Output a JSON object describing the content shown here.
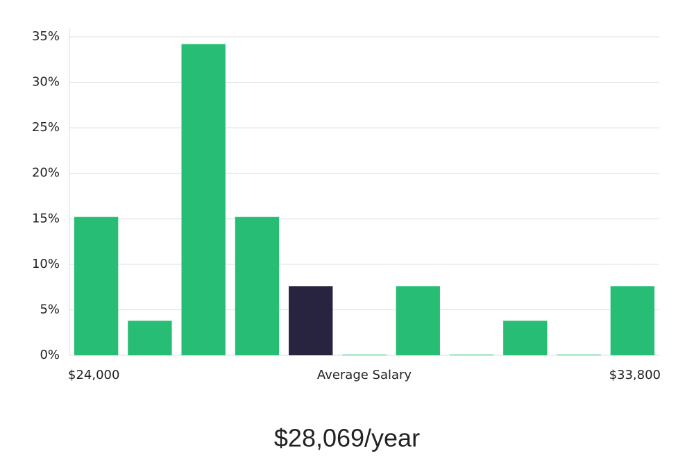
{
  "chart_data": {
    "type": "bar",
    "values": [
      15.2,
      3.8,
      34.2,
      15.2,
      7.6,
      0,
      7.6,
      0,
      3.8,
      0,
      7.6
    ],
    "color": "#27bd74",
    "highlight": 4,
    "highlight_color": "#28243f",
    "ylim": [
      0,
      35
    ],
    "yticks": [
      {
        "value": 0,
        "label": "0%"
      },
      {
        "value": 5,
        "label": "5%"
      },
      {
        "value": 10,
        "label": "10%"
      },
      {
        "value": 15,
        "label": "15%"
      },
      {
        "value": 20,
        "label": "20%"
      },
      {
        "value": 25,
        "label": "25%"
      },
      {
        "value": 30,
        "label": "30%"
      },
      {
        "value": 35,
        "label": "35%"
      }
    ],
    "grid": true,
    "x_start_label": "$24,000",
    "xlabel": "Average Salary",
    "x_end_label": "$33,800",
    "headline": "$28,069/year"
  }
}
